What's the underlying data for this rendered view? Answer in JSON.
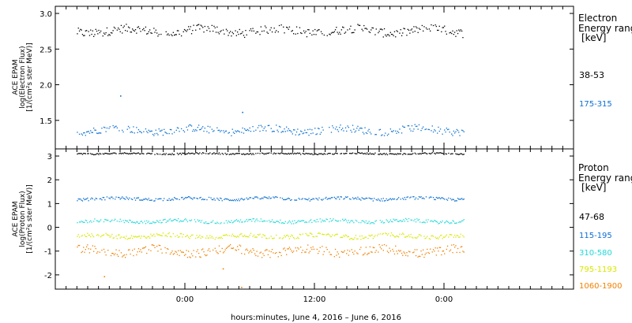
{
  "chart_data": [
    {
      "type": "scatter",
      "ylabel": [
        "ACE EPAM",
        "log(Electron Flux)",
        "[1/(cm²s ster MeV)]"
      ],
      "ylim": [
        1.1,
        3.1
      ],
      "yticks": [
        1.5,
        2.0,
        2.5,
        3.0
      ],
      "ytick_labels": [
        "1.5",
        "2.0",
        "2.5",
        "3.0"
      ],
      "legend_title": [
        "Electron",
        "Energy ranges",
        "[keV]"
      ],
      "x_start_hour": -10,
      "x_end_hour": 25.8,
      "series": [
        {
          "name": "38-53",
          "color": "#000000",
          "level": 2.76,
          "spread": 0.06
        },
        {
          "name": "175-315",
          "color": "#0a6fd0",
          "level": 1.37,
          "spread": 0.05,
          "outliers": [
            [
              -6,
              1.85
            ],
            [
              5.3,
              1.62
            ]
          ]
        }
      ]
    },
    {
      "type": "scatter",
      "ylabel": [
        "ACE EPAM",
        "log(Proton Flux)",
        "[1/(cm²s ster MeV)]"
      ],
      "ylim": [
        -2.6,
        3.3
      ],
      "yticks": [
        -2,
        -1,
        0,
        1,
        2,
        3
      ],
      "ytick_labels": [
        "-2",
        "-1",
        "0",
        "1",
        "2",
        "3"
      ],
      "legend_title": [
        "Proton",
        "Energy ranges",
        "[keV]"
      ],
      "x_start_hour": -10,
      "x_end_hour": 25.8,
      "series": [
        {
          "name": "47-68",
          "color": "#000000",
          "level": 3.12,
          "spread": 0.03
        },
        {
          "name": "115-195",
          "color": "#0a6fd0",
          "level": 1.22,
          "spread": 0.06
        },
        {
          "name": "310-580",
          "color": "#22d8d8",
          "level": 0.28,
          "spread": 0.07
        },
        {
          "name": "795-1193",
          "color": "#d9e600",
          "level": -0.35,
          "spread": 0.09
        },
        {
          "name": "1060-1900",
          "color": "#f08000",
          "level": -0.98,
          "spread": 0.18,
          "outliers": [
            [
              -7.5,
              -2.05
            ],
            [
              5.2,
              -2.5
            ],
            [
              3.5,
              -1.72
            ]
          ]
        }
      ]
    }
  ],
  "x_axis": {
    "range_hours": [
      -12,
      36
    ],
    "ticks": [
      0,
      12,
      24
    ],
    "tick_labels": [
      "0:00",
      "12:00",
      "0:00"
    ],
    "minor_step_hours": 1,
    "label": "hours:minutes,  June  4, 2016 – June  6, 2016"
  }
}
